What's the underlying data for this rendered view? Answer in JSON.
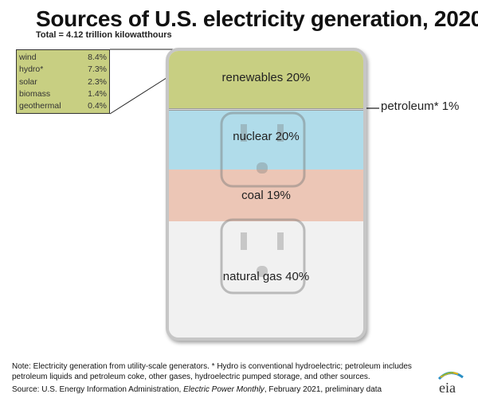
{
  "title": "Sources of U.S. electricity generation, 2020",
  "subtitle": "Total = 4.12 trillion kilowatthours",
  "chart_data": {
    "type": "bar",
    "title": "Sources of U.S. electricity generation, 2020",
    "subtitle": "Total = 4.12 trillion kilowatthours",
    "categories": [
      "renewables",
      "petroleum*",
      "nuclear",
      "coal",
      "natural gas"
    ],
    "values": [
      20,
      1,
      20,
      19,
      40
    ],
    "labels": [
      "renewables 20%",
      "petroleum* 1%",
      "nuclear 20%",
      "coal 19%",
      "natural gas 40%"
    ],
    "colors": [
      "#c8cf82",
      "#dcdcdc",
      "#b0dcea",
      "#ecc6b6",
      "#f1f1f1"
    ],
    "renewables_breakdown": [
      {
        "name": "wind",
        "value": "8.4%"
      },
      {
        "name": "hydro*",
        "value": "7.3%"
      },
      {
        "name": "solar",
        "value": "2.3%"
      },
      {
        "name": "biomass",
        "value": "1.4%"
      },
      {
        "name": "geothermal",
        "value": "0.4%"
      }
    ]
  },
  "notes": {
    "note": "Note: Electricity generation from utility-scale generators. * Hydro is conventional hydroelectric; petroleum includes petroleum liquids and petroleum coke, other gases, hydroelectric pumped storage, and other sources.",
    "source_prefix": "Source: U.S. Energy Information Administration, ",
    "source_italic": "Electric Power Monthly",
    "source_suffix": ", February 2021, preliminary data"
  },
  "logo_text": "eia"
}
